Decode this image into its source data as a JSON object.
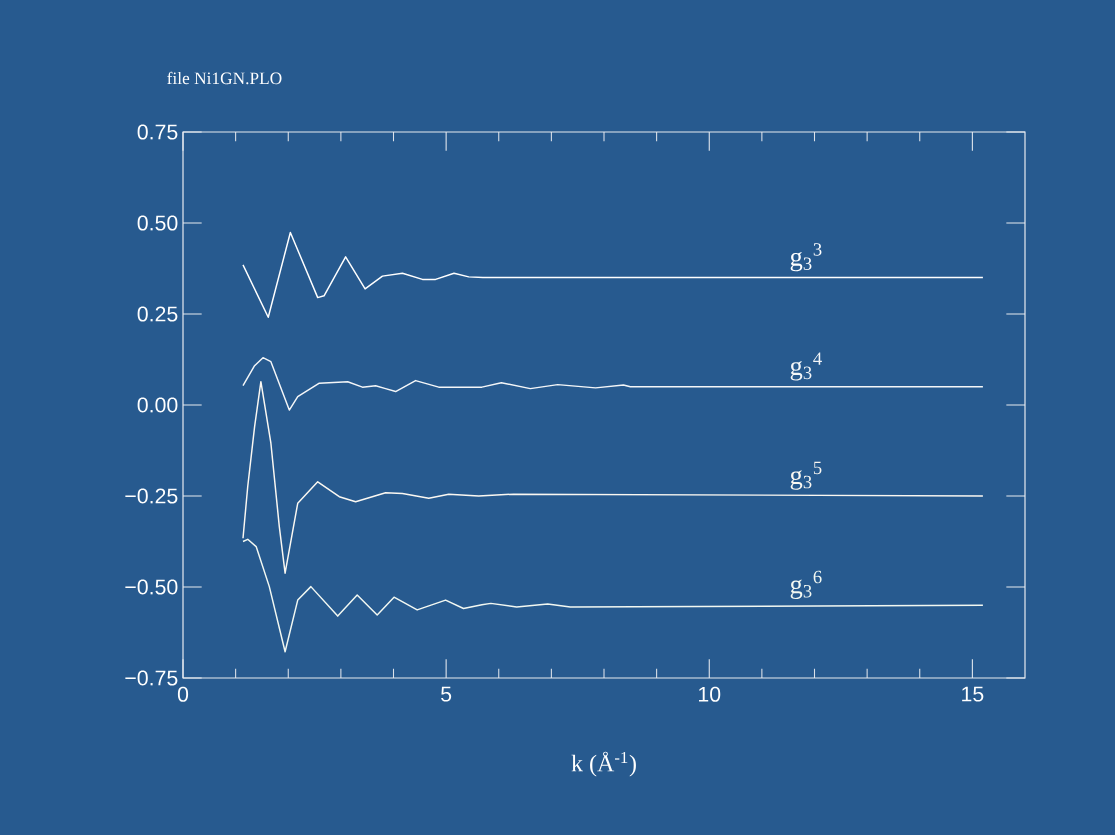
{
  "chart_data": {
    "type": "line",
    "title": "file   Ni1GN.PLO",
    "xlabel": "k (Å$^{-1}$)",
    "xlim": [
      0,
      16
    ],
    "ylim": [
      -0.75,
      0.75
    ],
    "xticks": [
      0,
      5,
      10,
      15
    ],
    "yticks": [
      {
        "value": -0.75,
        "label": "−0.75"
      },
      {
        "value": -0.5,
        "label": "−0.50"
      },
      {
        "value": -0.25,
        "label": "−0.25"
      },
      {
        "value": 0,
        "label": "0.00"
      },
      {
        "value": 0.25,
        "label": "0.25"
      },
      {
        "value": 0.5,
        "label": "0.50"
      },
      {
        "value": 0.75,
        "label": "0.75"
      }
    ],
    "series": [
      {
        "name": "g$_{3}$$^{3}$",
        "color": "#ffffff",
        "x": [
          1.14,
          1.62,
          2.04,
          2.56,
          2.68,
          3.09,
          3.46,
          3.79,
          4.17,
          4.55,
          4.8,
          5.15,
          5.43,
          5.7,
          15.2
        ],
        "values": [
          0.385,
          0.241,
          0.474,
          0.295,
          0.3,
          0.407,
          0.319,
          0.354,
          0.362,
          0.345,
          0.345,
          0.362,
          0.352,
          0.35,
          0.35
        ]
      },
      {
        "name": "g$_{3}$$^{4}$",
        "color": "#f4f6f8",
        "x": [
          1.14,
          1.36,
          1.52,
          1.67,
          2.02,
          2.18,
          2.59,
          3.13,
          3.41,
          3.66,
          3.85,
          4.04,
          4.42,
          4.86,
          5.68,
          6.05,
          6.6,
          7.12,
          7.84,
          8.37,
          8.5,
          15.2
        ],
        "values": [
          0.053,
          0.108,
          0.13,
          0.119,
          -0.014,
          0.023,
          0.06,
          0.064,
          0.049,
          0.053,
          0.045,
          0.037,
          0.067,
          0.049,
          0.049,
          0.061,
          0.045,
          0.056,
          0.047,
          0.055,
          0.05,
          0.05
        ]
      },
      {
        "name": "g$_{3}$$^{5}$",
        "color": "#fbf8f2",
        "x": [
          1.14,
          1.23,
          1.36,
          1.48,
          1.67,
          1.83,
          1.94,
          2.18,
          2.56,
          2.97,
          3.28,
          3.85,
          4.17,
          4.67,
          5.05,
          5.62,
          6.28,
          15.2
        ],
        "values": [
          -0.366,
          -0.224,
          -0.06,
          0.064,
          -0.105,
          -0.334,
          -0.462,
          -0.27,
          -0.211,
          -0.252,
          -0.266,
          -0.241,
          -0.243,
          -0.256,
          -0.245,
          -0.25,
          -0.245,
          -0.25
        ]
      },
      {
        "name": "g$_{3}$$^{6}$",
        "color": "#f2f8f2",
        "x": [
          1.14,
          1.23,
          1.39,
          1.64,
          1.94,
          2.18,
          2.43,
          2.94,
          3.31,
          3.69,
          4.01,
          4.45,
          4.99,
          5.33,
          5.68,
          5.85,
          6.34,
          6.93,
          7.36,
          15.2
        ],
        "values": [
          -0.375,
          -0.369,
          -0.389,
          -0.499,
          -0.678,
          -0.536,
          -0.499,
          -0.58,
          -0.522,
          -0.577,
          -0.528,
          -0.563,
          -0.536,
          -0.559,
          -0.549,
          -0.545,
          -0.555,
          -0.547,
          -0.555,
          -0.55
        ]
      }
    ]
  }
}
